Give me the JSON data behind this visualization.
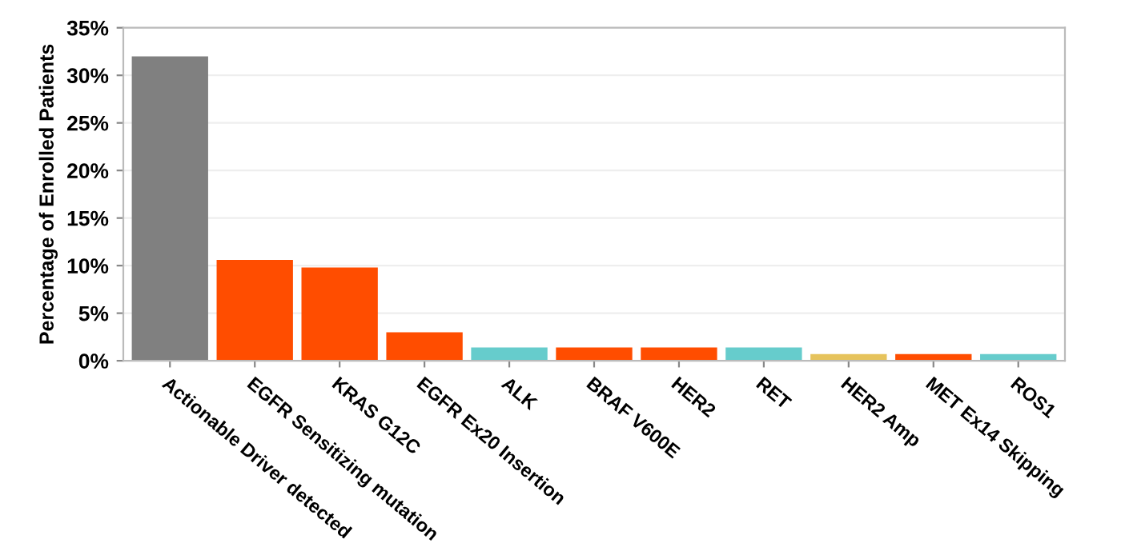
{
  "chart_data": {
    "type": "bar",
    "ylabel": "Percentage of Enrolled Patients",
    "categories": [
      "Actionable Driver detected",
      "EGFR Sensitizing mutation",
      "KRAS G12C",
      "EGFR Ex20 Insertion",
      "ALK",
      "BRAF V600E",
      "HER2",
      "RET",
      "HER2 Amp",
      "MET Ex14 Skipping",
      "ROS1"
    ],
    "values": [
      32.0,
      10.6,
      9.8,
      3.0,
      1.4,
      1.4,
      1.4,
      1.4,
      0.7,
      0.7,
      0.7
    ],
    "colors": [
      "#808080",
      "#ff4d00",
      "#ff4d00",
      "#ff4d00",
      "#66cccc",
      "#ff4d00",
      "#ff4d00",
      "#66cccc",
      "#e6c35c",
      "#ff4d00",
      "#66cccc"
    ],
    "ylim": [
      0,
      35
    ],
    "yticks": [
      {
        "value": 0,
        "label": "0%"
      },
      {
        "value": 5,
        "label": "5%"
      },
      {
        "value": 10,
        "label": "10%"
      },
      {
        "value": 15,
        "label": "15%"
      },
      {
        "value": 20,
        "label": "20%"
      },
      {
        "value": 25,
        "label": "25%"
      },
      {
        "value": 30,
        "label": "30%"
      },
      {
        "value": 35,
        "label": "35%"
      }
    ],
    "grid": "y"
  }
}
